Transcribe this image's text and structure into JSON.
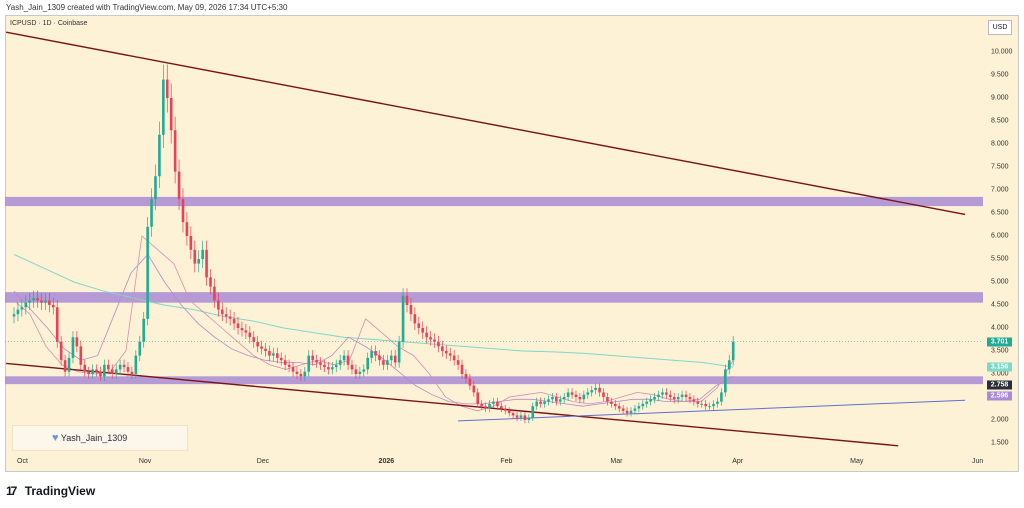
{
  "header": {
    "created_by": "Yash_Jain_1309 created with TradingView.com, May 09, 2026 17:34 UTC+5:30"
  },
  "symbol": {
    "label": "ICPUSD · 1D · Coinbase"
  },
  "currency": "USD",
  "watermark": {
    "heart_icon": "heart-icon",
    "user": "Yash_Jain_1309"
  },
  "footer": {
    "logo_icon": "tradingview-logo-icon",
    "brand": "TradingView"
  },
  "colors": {
    "background": "#fdf1d6",
    "up_candle": "#22ab94",
    "down_candle": "#e8415a",
    "zone": "#a98bd6",
    "trendline": "#7a1414",
    "support_line": "#5f6fcf",
    "ma_long": "#7fd8c8",
    "ma_mid": "#b889c8",
    "ma_short": "#d68fb0"
  },
  "chart_data": {
    "type": "candlestick",
    "symbol": "ICPUSD",
    "timeframe": "1D",
    "exchange": "Coinbase",
    "ylim": [
      1.5,
      10.2
    ],
    "y_ticks": [
      "10.000",
      "9.500",
      "9.000",
      "8.500",
      "8.000",
      "7.500",
      "7.000",
      "6.500",
      "6.000",
      "5.500",
      "5.000",
      "4.500",
      "4.000",
      "3.500",
      "3.000",
      "2.500",
      "2.000",
      "1.500"
    ],
    "x_ticks": [
      {
        "label": "Oct",
        "day": 0
      },
      {
        "label": "Nov",
        "day": 31
      },
      {
        "label": "Dec",
        "day": 61
      },
      {
        "label": "2026",
        "day": 92,
        "bold": true
      },
      {
        "label": "Feb",
        "day": 123
      },
      {
        "label": "Mar",
        "day": 151
      },
      {
        "label": "Apr",
        "day": 182
      },
      {
        "label": "May",
        "day": 212
      },
      {
        "label": "Jun",
        "day": 243
      }
    ],
    "closes": [
      4.3,
      4.4,
      4.45,
      4.55,
      4.6,
      4.65,
      4.6,
      4.55,
      4.6,
      4.5,
      4.45,
      3.7,
      3.3,
      3.05,
      3.35,
      3.8,
      3.6,
      3.2,
      3.05,
      3.0,
      3.1,
      3.05,
      2.95,
      3.2,
      3.1,
      3.0,
      3.1,
      3.2,
      3.15,
      3.05,
      3.0,
      3.4,
      3.7,
      4.2,
      6.2,
      6.8,
      7.3,
      8.2,
      9.4,
      9.0,
      8.3,
      7.4,
      6.8,
      6.3,
      6.0,
      5.7,
      5.4,
      5.5,
      5.7,
      5.1,
      4.9,
      4.6,
      4.4,
      4.3,
      4.25,
      4.2,
      4.1,
      4.0,
      3.95,
      3.9,
      3.8,
      3.7,
      3.6,
      3.55,
      3.5,
      3.4,
      3.45,
      3.35,
      3.3,
      3.2,
      3.15,
      3.05,
      3.0,
      2.95,
      3.05,
      3.4,
      3.3,
      3.25,
      3.2,
      3.15,
      3.1,
      3.15,
      3.2,
      3.3,
      3.4,
      3.2,
      3.1,
      3.0,
      3.05,
      3.1,
      3.35,
      3.5,
      3.4,
      3.3,
      3.2,
      3.3,
      3.4,
      3.25,
      3.7,
      4.7,
      4.5,
      4.3,
      4.1,
      4.0,
      3.9,
      3.8,
      3.75,
      3.7,
      3.6,
      3.5,
      3.45,
      3.4,
      3.3,
      3.2,
      3.0,
      2.9,
      2.75,
      2.6,
      2.35,
      2.3,
      2.25,
      2.35,
      2.4,
      2.3,
      2.25,
      2.2,
      2.15,
      2.1,
      2.05,
      2.1,
      2.0,
      2.05,
      2.3,
      2.4,
      2.35,
      2.4,
      2.45,
      2.5,
      2.4,
      2.45,
      2.5,
      2.6,
      2.55,
      2.5,
      2.45,
      2.55,
      2.6,
      2.65,
      2.7,
      2.6,
      2.5,
      2.4,
      2.35,
      2.3,
      2.25,
      2.2,
      2.15,
      2.2,
      2.25,
      2.3,
      2.35,
      2.4,
      2.45,
      2.5,
      2.55,
      2.6,
      2.55,
      2.5,
      2.45,
      2.5,
      2.55,
      2.5,
      2.45,
      2.4,
      2.35,
      2.35,
      2.3,
      2.3,
      2.35,
      2.4,
      2.6,
      3.1,
      3.3,
      3.7
    ],
    "series": [
      {
        "name": "",
        "role": "moving-average-long",
        "values": [
          5.6,
          5.3,
          5.0,
          4.8,
          4.65,
          4.5,
          4.4,
          4.25,
          4.15,
          4.0,
          3.9,
          3.8,
          3.75,
          3.7,
          3.65,
          3.6,
          3.55,
          3.5,
          3.48,
          3.45,
          3.4,
          3.35,
          3.3,
          3.25,
          3.15
        ]
      },
      {
        "name": "",
        "role": "moving-average-mid",
        "values": [
          4.8,
          4.4,
          4.0,
          3.55,
          3.3,
          3.4,
          4.3,
          5.2,
          5.6,
          5.0,
          4.5,
          4.1,
          3.8,
          3.55,
          3.4,
          3.3,
          3.25,
          3.25,
          3.2,
          3.4,
          3.8,
          3.6,
          3.35,
          3.05,
          2.75,
          2.55,
          2.4,
          2.35,
          2.35,
          2.4,
          2.45,
          2.45,
          2.4,
          2.35,
          2.3,
          2.35,
          2.4,
          2.45,
          2.45,
          2.4,
          2.4,
          2.45,
          2.75,
          2.95
        ]
      },
      {
        "name": "",
        "role": "moving-average-short",
        "values": [
          4.6,
          4.3,
          3.6,
          3.2,
          3.05,
          3.0,
          3.05,
          3.5,
          6.0,
          5.7,
          5.4,
          4.6,
          4.3,
          4.0,
          3.7,
          3.4,
          3.2,
          3.1,
          3.2,
          3.3,
          3.2,
          3.3,
          4.2,
          3.9,
          3.6,
          3.4,
          3.0,
          2.5,
          2.3,
          2.2,
          2.3,
          2.5,
          2.55,
          2.6,
          2.5,
          2.4,
          2.35,
          2.4,
          2.5,
          2.6,
          2.55,
          2.45,
          2.4,
          2.4,
          2.7,
          3.3
        ]
      }
    ],
    "zones": [
      {
        "low": 6.65,
        "high": 6.85
      },
      {
        "low": 4.55,
        "high": 4.78
      },
      {
        "low": 2.78,
        "high": 2.95
      }
    ],
    "trendlines": [
      {
        "role": "descending-resistance",
        "from": {
          "day": -2,
          "price": 10.43
        },
        "to": {
          "day": 242,
          "price": 6.47
        }
      },
      {
        "role": "descending-support",
        "from": {
          "day": -2,
          "price": 3.23
        },
        "to": {
          "day": 225,
          "price": 1.44
        }
      },
      {
        "role": "ascending-support",
        "from": {
          "day": 113,
          "price": 1.98
        },
        "to": {
          "day": 242,
          "price": 2.43
        }
      }
    ],
    "price_labels": [
      {
        "text": "3.701",
        "value": 3.701,
        "color": "#22ab94"
      },
      {
        "text": "3.156",
        "value": 3.156,
        "color": "#7fd8c8"
      },
      {
        "text": "2.758",
        "value": 2.758,
        "color": "#2a2e39"
      },
      {
        "text": "2.596",
        "value": 2.596,
        "color": "#a98bd6"
      }
    ],
    "current_price": 3.701
  }
}
